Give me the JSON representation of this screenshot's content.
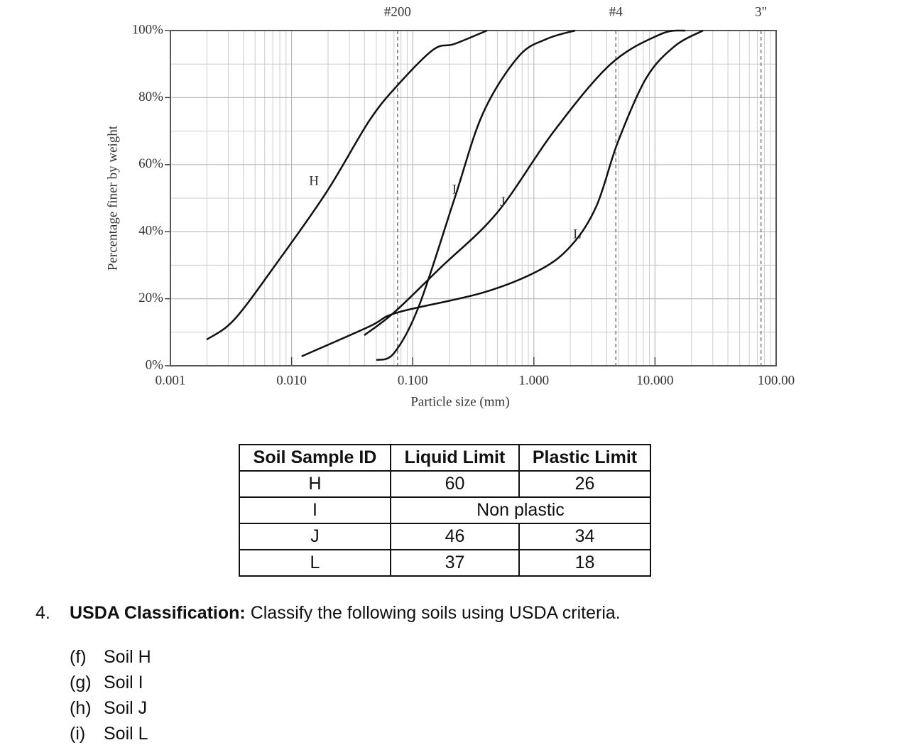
{
  "chart_data": {
    "type": "line",
    "x_label": "Particle size (mm)",
    "y_label": "Percentage finer by weight",
    "xlog": true,
    "grid": true,
    "color": "#111111",
    "xlim": [
      0.001,
      100
    ],
    "ylim": [
      0,
      100
    ],
    "xticks": [
      0.001,
      {
        "value": 0.01,
        "label": "0.010"
      },
      {
        "value": 0.1,
        "label": "0.100"
      },
      {
        "value": 1,
        "label": "1.000"
      },
      {
        "value": 10,
        "label": "10.000"
      },
      {
        "value": 100,
        "label": "100.00"
      }
    ],
    "yticks": [
      {
        "value": 0,
        "label": "0%"
      },
      {
        "value": 20,
        "label": "20%"
      },
      {
        "value": 40,
        "label": "40%"
      },
      {
        "value": 60,
        "label": "60%"
      },
      {
        "value": 80,
        "label": "80%"
      },
      {
        "value": 100,
        "label": "100%"
      }
    ],
    "sieves": [
      {
        "label": "#200",
        "x": 0.075
      },
      {
        "label": "#4",
        "x": 4.75
      },
      {
        "label": "3\"",
        "x": 75
      }
    ],
    "series": [
      {
        "name": "H",
        "x": [
          0.00199,
          0.00337,
          0.00757,
          0.0195,
          0.0438,
          0.0751,
          0.148,
          0.221,
          0.411
        ],
        "values": [
          7.8,
          13.8,
          30.7,
          51.9,
          73.1,
          83.7,
          94.3,
          96,
          100
        ]
      },
      {
        "name": "I",
        "x": [
          0.0501,
          0.0702,
          0.113,
          0.221,
          0.379,
          0.745,
          1.28,
          2.19
        ],
        "values": [
          1.7,
          3.8,
          18,
          49.8,
          75.2,
          92.2,
          97.5,
          100
        ]
      },
      {
        "name": "J",
        "x": [
          0.0398,
          0.0702,
          0.169,
          0.496,
          1.46,
          4.31,
          11.1,
          17.8
        ],
        "values": [
          9.1,
          15.9,
          29.2,
          45.6,
          69.9,
          90,
          98.9,
          100
        ]
      },
      {
        "name": "L",
        "x": [
          0.0121,
          0.0438,
          0.0751,
          0.379,
          1.12,
          2.05,
          3.29,
          4.93,
          8.46,
          14.5,
          24.9
        ],
        "values": [
          2.8,
          11.7,
          15.9,
          21.8,
          28.6,
          36,
          47.7,
          66.7,
          85.8,
          95.3,
          100
        ]
      }
    ]
  },
  "table": {
    "header": [
      "Soil Sample ID",
      "Liquid Limit",
      "Plastic Limit"
    ],
    "rows": [
      [
        "H",
        60,
        26
      ],
      [
        "I",
        "Non plastic"
      ],
      [
        "J",
        46,
        34
      ],
      [
        "L",
        37,
        18
      ]
    ]
  },
  "question": {
    "number": "4.",
    "heading": "USDA Classification:",
    "text": "Classify the following soils using USDA criteria.",
    "items": [
      {
        "label": "(f)",
        "text": "Soil H"
      },
      {
        "label": "(g)",
        "text": "Soil I"
      },
      {
        "label": "(h)",
        "text": "Soil J"
      },
      {
        "label": "(i)",
        "text": "Soil L"
      }
    ]
  }
}
